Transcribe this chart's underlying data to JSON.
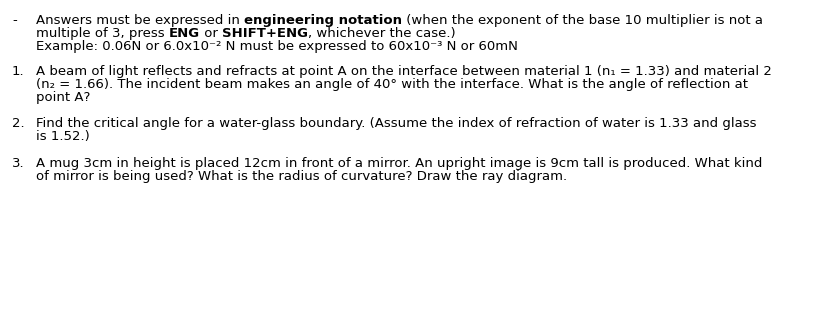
{
  "background_color": "#ffffff",
  "font_size": 9.5,
  "font_family": "DejaVu Sans",
  "bullet_symbol": "-",
  "line1_normal1": "Answers must be expressed in ",
  "line1_bold": "engineering notation",
  "line1_normal2": " (when the exponent of the base 10 multiplier is not a",
  "line2_normal1": "multiple of 3, press ",
  "line2_bold1": "ENG",
  "line2_normal2": " or ",
  "line2_bold2": "SHIFT+ENG",
  "line2_normal3": ", whichever the case.)",
  "line3": "Example: 0.06N or 6.0x10⁻² N must be expressed to 60x10⁻³ N or 60mN",
  "q1_num": "1.",
  "q1_line1": "A beam of light reflects and refracts at point A on the interface between material 1 (n₁ = 1.33) and material 2",
  "q1_line2": "(n₂ = 1.66). The incident beam makes an angle of 40° with the interface. What is the angle of reflection at",
  "q1_line3": "point A?",
  "q2_num": "2.",
  "q2_line1": "Find the critical angle for a water-glass boundary. (Assume the index of refraction of water is 1.33 and glass",
  "q2_line2": "is 1.52.)",
  "q3_num": "3.",
  "q3_line1": "A mug 3cm in height is placed 12cm in front of a mirror. An upright image is 9cm tall is produced. What kind",
  "q3_line2": "of mirror is being used? What is the radius of curvature? Draw the ray diagram."
}
